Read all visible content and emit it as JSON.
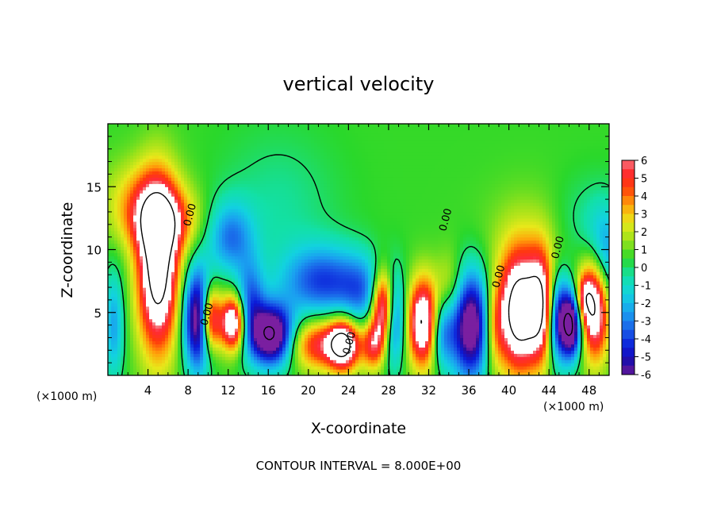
{
  "chart_data": {
    "type": "heatmap",
    "title": "vertical velocity",
    "xlabel": "X-coordinate",
    "ylabel": "Z-coordinate",
    "x_unit_left": "(×1000 m)",
    "x_unit_right": "(×1000 m)",
    "xlim": [
      0,
      50
    ],
    "ylim": [
      0,
      20
    ],
    "xticks": [
      4,
      8,
      12,
      16,
      20,
      24,
      28,
      32,
      36,
      40,
      44,
      48
    ],
    "yticks": [
      5,
      10,
      15
    ],
    "footer": "CONTOUR INTERVAL = 8.000E+00",
    "colorbar": {
      "range": [
        -6,
        6
      ],
      "ticks": [
        6,
        5,
        4,
        3,
        2,
        1,
        0,
        -1,
        -2,
        -3,
        -4,
        -5,
        -6
      ],
      "colors": [
        {
          "v": -6.0,
          "c": "#7a1fa0"
        },
        {
          "v": -5.5,
          "c": "#2a0a9a"
        },
        {
          "v": -4.5,
          "c": "#0a1ad8"
        },
        {
          "v": -3.5,
          "c": "#1a5ee8"
        },
        {
          "v": -2.5,
          "c": "#1aa0f0"
        },
        {
          "v": -1.5,
          "c": "#12d2e0"
        },
        {
          "v": -0.5,
          "c": "#12e0a8"
        },
        {
          "v": 0.5,
          "c": "#2ad82a"
        },
        {
          "v": 1.5,
          "c": "#9ae21a"
        },
        {
          "v": 2.5,
          "c": "#e8e81a"
        },
        {
          "v": 3.5,
          "c": "#ffa20a"
        },
        {
          "v": 4.5,
          "c": "#ff3a0a"
        },
        {
          "v": 5.5,
          "c": "#ff2a3a"
        },
        {
          "v": 6.0,
          "c": "#f58a8a"
        }
      ],
      "over_color": "#ffffff"
    },
    "contour_labels": [
      {
        "text": "0.00",
        "x": 8.5,
        "y": 12.7
      },
      {
        "text": "0.00",
        "x": 10.2,
        "y": 4.8
      },
      {
        "text": "0.00",
        "x": 24.4,
        "y": 2.5
      },
      {
        "text": "0.00",
        "x": 34.0,
        "y": 12.3
      },
      {
        "text": "0.00",
        "x": 39.3,
        "y": 7.8
      },
      {
        "text": "0.00",
        "x": 45.2,
        "y": 10.1
      }
    ],
    "features": [
      {
        "x": 5.0,
        "z": 8.5,
        "sx": 1.4,
        "sz": 4.5,
        "amp": 9
      },
      {
        "x": 5.5,
        "z": 12.2,
        "sx": 2.4,
        "sz": 1.8,
        "amp": 4
      },
      {
        "x": 3.5,
        "z": 14.0,
        "sx": 2.5,
        "sz": 2.2,
        "amp": 2.5
      },
      {
        "x": 9.0,
        "z": 4.5,
        "sx": 1.0,
        "sz": 2.8,
        "amp": -8
      },
      {
        "x": 10.2,
        "z": 4.5,
        "sx": 0.7,
        "sz": 1.8,
        "amp": 7
      },
      {
        "x": 12.5,
        "z": 4.2,
        "sx": 0.9,
        "sz": 1.5,
        "amp": 8
      },
      {
        "x": 14.2,
        "z": 5.5,
        "sx": 1.0,
        "sz": 2.5,
        "amp": -4
      },
      {
        "x": 16.4,
        "z": 3.2,
        "sx": 1.5,
        "sz": 1.7,
        "amp": -9
      },
      {
        "x": 12.2,
        "z": 11.0,
        "sx": 1.6,
        "sz": 2.0,
        "amp": -3.5
      },
      {
        "x": 17.0,
        "z": 13.5,
        "sx": 4.0,
        "sz": 4.0,
        "amp": -1.0
      },
      {
        "x": 21.5,
        "z": 7.5,
        "sx": 3.0,
        "sz": 2.0,
        "amp": -4.5
      },
      {
        "x": 21.5,
        "z": 2.5,
        "sx": 2.5,
        "sz": 1.4,
        "amp": 5
      },
      {
        "x": 23.5,
        "z": 2.5,
        "sx": 1.0,
        "sz": 1.4,
        "amp": 6
      },
      {
        "x": 25.5,
        "z": 6.5,
        "sx": 1.5,
        "sz": 2.0,
        "amp": -2.5
      },
      {
        "x": 27.5,
        "z": 5.5,
        "sx": 0.8,
        "sz": 2.0,
        "amp": 8
      },
      {
        "x": 28.5,
        "z": 4.5,
        "sx": 0.8,
        "sz": 2.5,
        "amp": -5
      },
      {
        "x": 26.5,
        "z": 2.5,
        "sx": 0.8,
        "sz": 1.4,
        "amp": 4
      },
      {
        "x": 31.5,
        "z": 4.2,
        "sx": 1.1,
        "sz": 2.4,
        "amp": 8
      },
      {
        "x": 33.2,
        "z": 3.5,
        "sx": 0.9,
        "sz": 2.0,
        "amp": -4
      },
      {
        "x": 36.2,
        "z": 4.0,
        "sx": 1.4,
        "sz": 3.0,
        "amp": -8
      },
      {
        "x": 34.2,
        "z": 7.0,
        "sx": 1.0,
        "sz": 2.0,
        "amp": 2
      },
      {
        "x": 38.5,
        "z": 3.8,
        "sx": 0.8,
        "sz": 2.5,
        "amp": 3
      },
      {
        "x": 41.0,
        "z": 5.0,
        "sx": 1.4,
        "sz": 3.2,
        "amp": 9
      },
      {
        "x": 43.2,
        "z": 5.5,
        "sx": 0.9,
        "sz": 3.0,
        "amp": 6
      },
      {
        "x": 45.0,
        "z": 4.5,
        "sx": 0.8,
        "sz": 2.4,
        "amp": -6
      },
      {
        "x": 46.3,
        "z": 4.0,
        "sx": 0.7,
        "sz": 1.8,
        "amp": -8
      },
      {
        "x": 47.5,
        "z": 6.2,
        "sx": 0.6,
        "sz": 1.3,
        "amp": 3.5
      },
      {
        "x": 48.6,
        "z": 5.5,
        "sx": 1.0,
        "sz": 2.8,
        "amp": 8
      },
      {
        "x": 49.5,
        "z": 9.0,
        "sx": 1.2,
        "sz": 2.8,
        "amp": -3.5
      },
      {
        "x": 47.5,
        "z": 12.0,
        "sx": 2.5,
        "sz": 2.5,
        "amp": -1.2
      },
      {
        "x": 0.6,
        "z": 4.0,
        "sx": 0.7,
        "sz": 3.0,
        "amp": -3
      },
      {
        "x": 42.5,
        "z": 10.5,
        "sx": 3.5,
        "sz": 3.0,
        "amp": 1.2
      }
    ]
  }
}
